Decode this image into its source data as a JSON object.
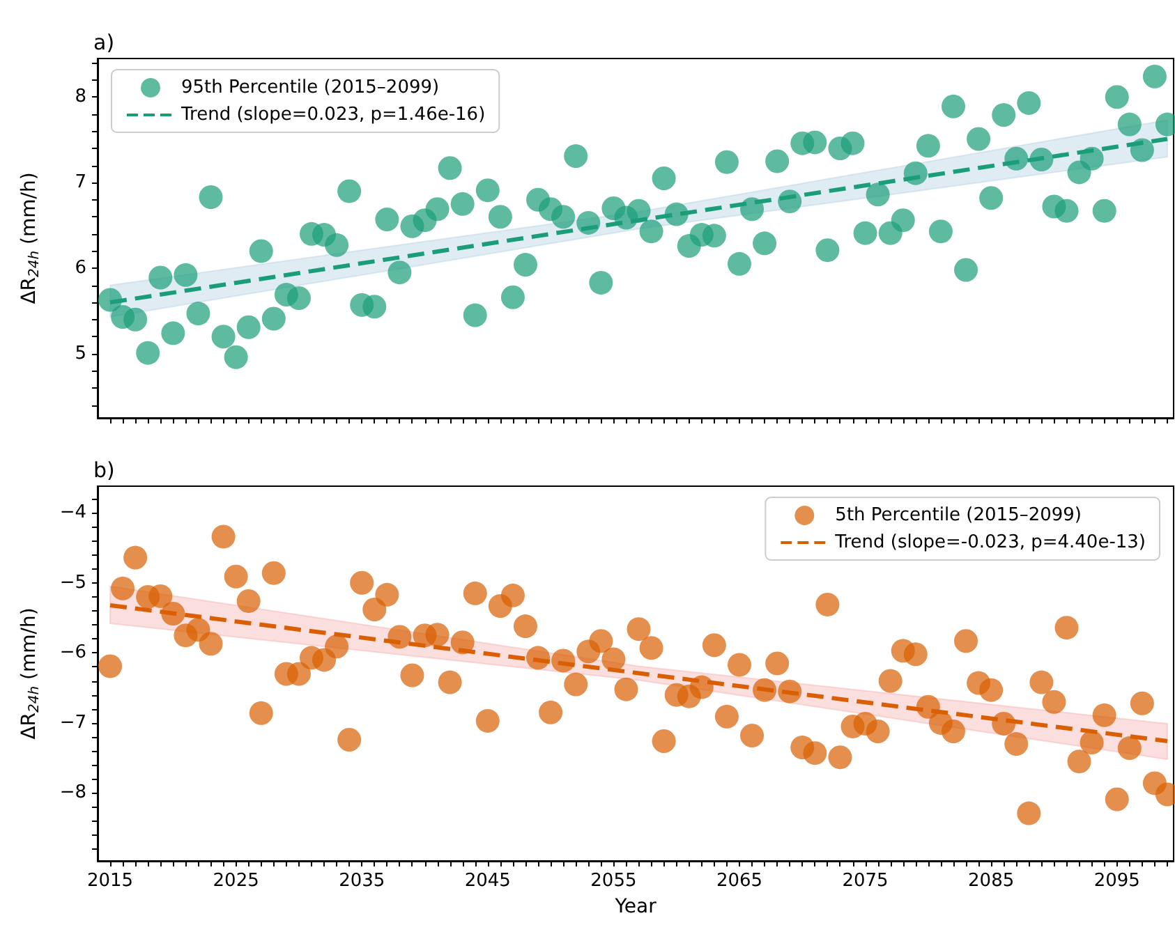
{
  "chart_data": [
    {
      "type": "scatter",
      "title": "a)",
      "ylabel": "ΔR$_{24h}$ (mm/h)",
      "legend": "top left",
      "tick_labels": "y",
      "xlim": [
        2014,
        2099.5
      ],
      "xticks": [
        {
          "value": 2015,
          "label": null
        },
        {
          "value": 2016,
          "label": null
        },
        {
          "value": 2017,
          "label": null
        },
        {
          "value": 2018,
          "label": null
        },
        {
          "value": 2019,
          "label": null
        },
        {
          "value": 2020,
          "label": null
        },
        {
          "value": 2021,
          "label": null
        },
        {
          "value": 2022,
          "label": null
        },
        {
          "value": 2023,
          "label": null
        },
        {
          "value": 2024,
          "label": null
        },
        {
          "value": 2025,
          "label": null
        },
        {
          "value": 2026,
          "label": null
        },
        {
          "value": 2027,
          "label": null
        },
        {
          "value": 2028,
          "label": null
        },
        {
          "value": 2029,
          "label": null
        },
        {
          "value": 2030,
          "label": null
        },
        {
          "value": 2031,
          "label": null
        },
        {
          "value": 2032,
          "label": null
        },
        {
          "value": 2033,
          "label": null
        },
        {
          "value": 2034,
          "label": null
        },
        {
          "value": 2035,
          "label": null
        },
        {
          "value": 2036,
          "label": null
        },
        {
          "value": 2037,
          "label": null
        },
        {
          "value": 2038,
          "label": null
        },
        {
          "value": 2039,
          "label": null
        },
        {
          "value": 2040,
          "label": null
        },
        {
          "value": 2041,
          "label": null
        },
        {
          "value": 2042,
          "label": null
        },
        {
          "value": 2043,
          "label": null
        },
        {
          "value": 2044,
          "label": null
        },
        {
          "value": 2045,
          "label": null
        },
        {
          "value": 2046,
          "label": null
        },
        {
          "value": 2047,
          "label": null
        },
        {
          "value": 2048,
          "label": null
        },
        {
          "value": 2049,
          "label": null
        },
        {
          "value": 2050,
          "label": null
        },
        {
          "value": 2051,
          "label": null
        },
        {
          "value": 2052,
          "label": null
        },
        {
          "value": 2053,
          "label": null
        },
        {
          "value": 2054,
          "label": null
        },
        {
          "value": 2055,
          "label": null
        },
        {
          "value": 2056,
          "label": null
        },
        {
          "value": 2057,
          "label": null
        },
        {
          "value": 2058,
          "label": null
        },
        {
          "value": 2059,
          "label": null
        },
        {
          "value": 2060,
          "label": null
        },
        {
          "value": 2061,
          "label": null
        },
        {
          "value": 2062,
          "label": null
        },
        {
          "value": 2063,
          "label": null
        },
        {
          "value": 2064,
          "label": null
        },
        {
          "value": 2065,
          "label": null
        },
        {
          "value": 2066,
          "label": null
        },
        {
          "value": 2067,
          "label": null
        },
        {
          "value": 2068,
          "label": null
        },
        {
          "value": 2069,
          "label": null
        },
        {
          "value": 2070,
          "label": null
        },
        {
          "value": 2071,
          "label": null
        },
        {
          "value": 2072,
          "label": null
        },
        {
          "value": 2073,
          "label": null
        },
        {
          "value": 2074,
          "label": null
        },
        {
          "value": 2075,
          "label": null
        },
        {
          "value": 2076,
          "label": null
        },
        {
          "value": 2077,
          "label": null
        },
        {
          "value": 2078,
          "label": null
        },
        {
          "value": 2079,
          "label": null
        },
        {
          "value": 2080,
          "label": null
        },
        {
          "value": 2081,
          "label": null
        },
        {
          "value": 2082,
          "label": null
        },
        {
          "value": 2083,
          "label": null
        },
        {
          "value": 2084,
          "label": null
        },
        {
          "value": 2085,
          "label": null
        },
        {
          "value": 2086,
          "label": null
        },
        {
          "value": 2087,
          "label": null
        },
        {
          "value": 2088,
          "label": null
        },
        {
          "value": 2089,
          "label": null
        },
        {
          "value": 2090,
          "label": null
        },
        {
          "value": 2091,
          "label": null
        },
        {
          "value": 2092,
          "label": null
        },
        {
          "value": 2093,
          "label": null
        },
        {
          "value": 2094,
          "label": null
        },
        {
          "value": 2095,
          "label": null
        },
        {
          "value": 2096,
          "label": null
        },
        {
          "value": 2097,
          "label": null
        },
        {
          "value": 2098,
          "label": null
        },
        {
          "value": 2099,
          "label": null
        }
      ],
      "ylim": [
        4.25,
        8.45
      ],
      "yticks": [
        {
          "value": 4.4,
          "label": null
        },
        {
          "value": 4.6,
          "label": null
        },
        {
          "value": 4.8,
          "label": null
        },
        5,
        {
          "value": 5.2,
          "label": null
        },
        {
          "value": 5.4,
          "label": null
        },
        {
          "value": 5.6,
          "label": null
        },
        {
          "value": 5.8,
          "label": null
        },
        6,
        {
          "value": 6.2,
          "label": null
        },
        {
          "value": 6.4,
          "label": null
        },
        {
          "value": 6.6,
          "label": null
        },
        {
          "value": 6.8,
          "label": null
        },
        7,
        {
          "value": 7.2,
          "label": null
        },
        {
          "value": 7.4,
          "label": null
        },
        {
          "value": 7.6,
          "label": null
        },
        {
          "value": 7.8,
          "label": null
        },
        8,
        {
          "value": 8.2,
          "label": null
        },
        {
          "value": 8.4,
          "label": null
        }
      ],
      "x": [
        2015,
        2016,
        2017,
        2018,
        2019,
        2020,
        2021,
        2022,
        2023,
        2024,
        2025,
        2026,
        2027,
        2028,
        2029,
        2030,
        2031,
        2032,
        2033,
        2034,
        2035,
        2036,
        2037,
        2038,
        2039,
        2040,
        2041,
        2042,
        2043,
        2044,
        2045,
        2046,
        2047,
        2048,
        2049,
        2050,
        2051,
        2052,
        2053,
        2054,
        2055,
        2056,
        2057,
        2058,
        2059,
        2060,
        2061,
        2062,
        2063,
        2064,
        2065,
        2066,
        2067,
        2068,
        2069,
        2070,
        2071,
        2072,
        2073,
        2074,
        2075,
        2076,
        2077,
        2078,
        2079,
        2080,
        2081,
        2082,
        2083,
        2084,
        2085,
        2086,
        2087,
        2088,
        2089,
        2090,
        2091,
        2092,
        2093,
        2094,
        2095,
        2096,
        2097,
        2098,
        2099
      ],
      "series": [
        {
          "name": "95th Percentile (2015–2099)",
          "marker": "circle",
          "color": "#1b9e77",
          "values": [
            5.63,
            5.43,
            5.4,
            5.01,
            5.89,
            5.24,
            5.92,
            5.47,
            6.83,
            5.2,
            4.96,
            5.31,
            6.2,
            5.41,
            5.69,
            5.65,
            6.4,
            6.39,
            6.27,
            6.9,
            5.57,
            5.55,
            6.57,
            5.95,
            6.49,
            6.56,
            6.69,
            7.17,
            6.75,
            5.45,
            6.91,
            6.6,
            5.66,
            6.04,
            6.8,
            6.69,
            6.6,
            7.31,
            6.53,
            5.83,
            6.7,
            6.59,
            6.67,
            6.43,
            7.05,
            6.63,
            6.26,
            6.39,
            6.38,
            7.24,
            6.05,
            6.69,
            6.29,
            7.25,
            6.78,
            7.46,
            7.47,
            6.21,
            7.4,
            7.46,
            6.41,
            6.86,
            6.41,
            6.56,
            7.11,
            7.43,
            6.43,
            7.89,
            5.98,
            7.51,
            6.82,
            7.79,
            7.28,
            7.93,
            7.27,
            6.72,
            6.67,
            7.12,
            7.28,
            6.67,
            8.0,
            7.68,
            7.38,
            8.24,
            7.68
          ]
        },
        {
          "name": "Trend (slope=0.023, p=1.46e-16)",
          "type": "line",
          "marker": "none",
          "line_style": "dashed",
          "color": "#1b9e77",
          "x": [
            2015,
            2057,
            2099
          ],
          "values": [
            5.6,
            6.56,
            7.51
          ],
          "lower": [
            5.43,
            6.46,
            7.3
          ],
          "upper": [
            5.8,
            6.66,
            7.73
          ]
        }
      ]
    },
    {
      "type": "scatter",
      "title": "b)",
      "xlabel": "Year",
      "ylabel": "ΔR$_{24h}$ (mm/h)",
      "legend": "top right",
      "xlim": [
        2014,
        2099.5
      ],
      "xticks": [
        {
          "value": 2015,
          "label": "2015"
        },
        {
          "value": 2016,
          "label": null
        },
        {
          "value": 2017,
          "label": null
        },
        {
          "value": 2018,
          "label": null
        },
        {
          "value": 2019,
          "label": null
        },
        {
          "value": 2020,
          "label": null
        },
        {
          "value": 2021,
          "label": null
        },
        {
          "value": 2022,
          "label": null
        },
        {
          "value": 2023,
          "label": null
        },
        {
          "value": 2024,
          "label": null
        },
        {
          "value": 2025,
          "label": "2025"
        },
        {
          "value": 2026,
          "label": null
        },
        {
          "value": 2027,
          "label": null
        },
        {
          "value": 2028,
          "label": null
        },
        {
          "value": 2029,
          "label": null
        },
        {
          "value": 2030,
          "label": null
        },
        {
          "value": 2031,
          "label": null
        },
        {
          "value": 2032,
          "label": null
        },
        {
          "value": 2033,
          "label": null
        },
        {
          "value": 2034,
          "label": null
        },
        {
          "value": 2035,
          "label": "2035"
        },
        {
          "value": 2036,
          "label": null
        },
        {
          "value": 2037,
          "label": null
        },
        {
          "value": 2038,
          "label": null
        },
        {
          "value": 2039,
          "label": null
        },
        {
          "value": 2040,
          "label": null
        },
        {
          "value": 2041,
          "label": null
        },
        {
          "value": 2042,
          "label": null
        },
        {
          "value": 2043,
          "label": null
        },
        {
          "value": 2044,
          "label": null
        },
        {
          "value": 2045,
          "label": "2045"
        },
        {
          "value": 2046,
          "label": null
        },
        {
          "value": 2047,
          "label": null
        },
        {
          "value": 2048,
          "label": null
        },
        {
          "value": 2049,
          "label": null
        },
        {
          "value": 2050,
          "label": null
        },
        {
          "value": 2051,
          "label": null
        },
        {
          "value": 2052,
          "label": null
        },
        {
          "value": 2053,
          "label": null
        },
        {
          "value": 2054,
          "label": null
        },
        {
          "value": 2055,
          "label": "2055"
        },
        {
          "value": 2056,
          "label": null
        },
        {
          "value": 2057,
          "label": null
        },
        {
          "value": 2058,
          "label": null
        },
        {
          "value": 2059,
          "label": null
        },
        {
          "value": 2060,
          "label": null
        },
        {
          "value": 2061,
          "label": null
        },
        {
          "value": 2062,
          "label": null
        },
        {
          "value": 2063,
          "label": null
        },
        {
          "value": 2064,
          "label": null
        },
        {
          "value": 2065,
          "label": "2065"
        },
        {
          "value": 2066,
          "label": null
        },
        {
          "value": 2067,
          "label": null
        },
        {
          "value": 2068,
          "label": null
        },
        {
          "value": 2069,
          "label": null
        },
        {
          "value": 2070,
          "label": null
        },
        {
          "value": 2071,
          "label": null
        },
        {
          "value": 2072,
          "label": null
        },
        {
          "value": 2073,
          "label": null
        },
        {
          "value": 2074,
          "label": null
        },
        {
          "value": 2075,
          "label": "2075"
        },
        {
          "value": 2076,
          "label": null
        },
        {
          "value": 2077,
          "label": null
        },
        {
          "value": 2078,
          "label": null
        },
        {
          "value": 2079,
          "label": null
        },
        {
          "value": 2080,
          "label": null
        },
        {
          "value": 2081,
          "label": null
        },
        {
          "value": 2082,
          "label": null
        },
        {
          "value": 2083,
          "label": null
        },
        {
          "value": 2084,
          "label": null
        },
        {
          "value": 2085,
          "label": "2085"
        },
        {
          "value": 2086,
          "label": null
        },
        {
          "value": 2087,
          "label": null
        },
        {
          "value": 2088,
          "label": null
        },
        {
          "value": 2089,
          "label": null
        },
        {
          "value": 2090,
          "label": null
        },
        {
          "value": 2091,
          "label": null
        },
        {
          "value": 2092,
          "label": null
        },
        {
          "value": 2093,
          "label": null
        },
        {
          "value": 2094,
          "label": null
        },
        {
          "value": 2095,
          "label": "2095"
        },
        {
          "value": 2096,
          "label": null
        },
        {
          "value": 2097,
          "label": null
        },
        {
          "value": 2098,
          "label": null
        },
        {
          "value": 2099,
          "label": null
        }
      ],
      "ylim": [
        -8.97,
        -3.62
      ],
      "yticks": [
        {
          "value": -8.8,
          "label": null
        },
        {
          "value": -8.6,
          "label": null
        },
        {
          "value": -8.4,
          "label": null
        },
        {
          "value": -8.2,
          "label": null
        },
        {
          "value": -8,
          "label": "−8"
        },
        {
          "value": -7.8,
          "label": null
        },
        {
          "value": -7.6,
          "label": null
        },
        {
          "value": -7.4,
          "label": null
        },
        {
          "value": -7.2,
          "label": null
        },
        {
          "value": -7,
          "label": "−7"
        },
        {
          "value": -6.8,
          "label": null
        },
        {
          "value": -6.6,
          "label": null
        },
        {
          "value": -6.4,
          "label": null
        },
        {
          "value": -6.2,
          "label": null
        },
        {
          "value": -6,
          "label": "−6"
        },
        {
          "value": -5.8,
          "label": null
        },
        {
          "value": -5.6,
          "label": null
        },
        {
          "value": -5.4,
          "label": null
        },
        {
          "value": -5.2,
          "label": null
        },
        {
          "value": -5,
          "label": "−5"
        },
        {
          "value": -4.8,
          "label": null
        },
        {
          "value": -4.6,
          "label": null
        },
        {
          "value": -4.4,
          "label": null
        },
        {
          "value": -4.2,
          "label": null
        },
        {
          "value": -4,
          "label": "−4"
        },
        {
          "value": -3.8,
          "label": null
        }
      ],
      "x": [
        2015,
        2016,
        2017,
        2018,
        2019,
        2020,
        2021,
        2022,
        2023,
        2024,
        2025,
        2026,
        2027,
        2028,
        2029,
        2030,
        2031,
        2032,
        2033,
        2034,
        2035,
        2036,
        2037,
        2038,
        2039,
        2040,
        2041,
        2042,
        2043,
        2044,
        2045,
        2046,
        2047,
        2048,
        2049,
        2050,
        2051,
        2052,
        2053,
        2054,
        2055,
        2056,
        2057,
        2058,
        2059,
        2060,
        2061,
        2062,
        2063,
        2064,
        2065,
        2066,
        2067,
        2068,
        2069,
        2070,
        2071,
        2072,
        2073,
        2074,
        2075,
        2076,
        2077,
        2078,
        2079,
        2080,
        2081,
        2082,
        2083,
        2084,
        2085,
        2086,
        2087,
        2088,
        2089,
        2090,
        2091,
        2092,
        2093,
        2094,
        2095,
        2096,
        2097,
        2098,
        2099
      ],
      "series": [
        {
          "name": "5th Percentile (2015–2099)",
          "marker": "circle",
          "color": "#d95f02",
          "values": [
            -6.19,
            -5.08,
            -4.64,
            -5.2,
            -5.19,
            -5.44,
            -5.75,
            -5.67,
            -5.87,
            -4.34,
            -4.91,
            -5.26,
            -6.86,
            -4.86,
            -6.3,
            -6.3,
            -6.07,
            -6.1,
            -5.91,
            -7.24,
            -5.0,
            -5.38,
            -5.17,
            -5.77,
            -6.32,
            -5.75,
            -5.74,
            -6.42,
            -5.85,
            -5.15,
            -6.97,
            -5.33,
            -5.18,
            -5.62,
            -6.07,
            -6.85,
            -6.11,
            -6.45,
            -5.98,
            -5.83,
            -6.09,
            -6.52,
            -5.66,
            -5.93,
            -7.26,
            -6.6,
            -6.62,
            -6.49,
            -5.89,
            -6.91,
            -6.17,
            -7.18,
            -6.53,
            -6.15,
            -6.55,
            -7.35,
            -7.43,
            -5.31,
            -7.49,
            -7.05,
            -7.01,
            -7.12,
            -6.4,
            -5.97,
            -6.02,
            -6.77,
            -7.0,
            -7.12,
            -5.83,
            -6.43,
            -6.53,
            -7.01,
            -7.3,
            -8.29,
            -6.42,
            -6.7,
            -5.64,
            -7.55,
            -7.28,
            -6.89,
            -8.09,
            -7.36,
            -6.72,
            -7.86,
            -8.02
          ]
        },
        {
          "name": "Trend (slope=-0.023, p=4.40e-13)",
          "type": "line",
          "marker": "none",
          "line_style": "dashed",
          "color": "#d95f02",
          "x": [
            2015,
            2057,
            2099
          ],
          "values": [
            -5.32,
            -6.29,
            -7.26
          ],
          "lower": [
            -5.58,
            -6.39,
            -7.52
          ],
          "upper": [
            -5.05,
            -6.19,
            -7.01
          ]
        }
      ]
    }
  ]
}
